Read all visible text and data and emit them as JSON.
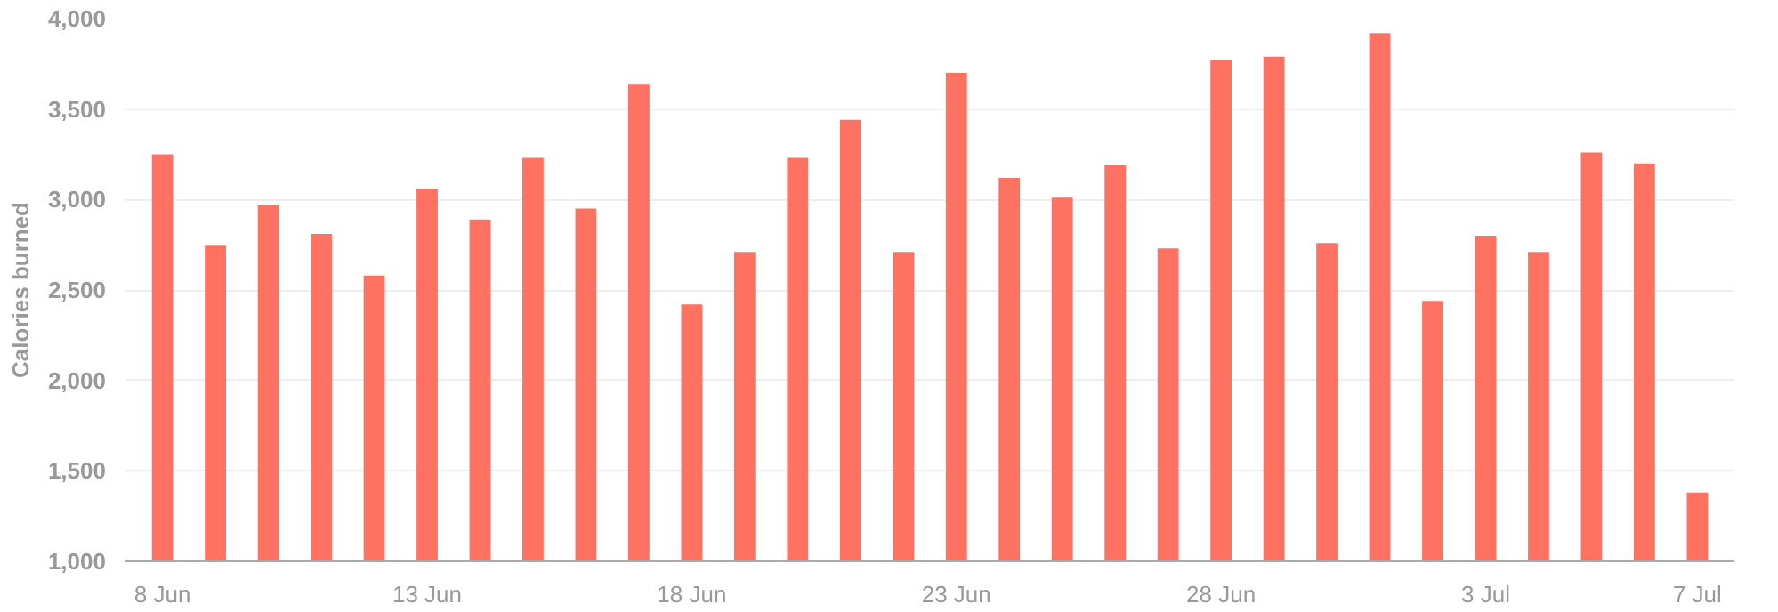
{
  "chart_data": {
    "type": "bar",
    "ylabel": "Calories burned",
    "categories": [
      "8 Jun",
      null,
      null,
      null,
      null,
      "13 Jun",
      null,
      null,
      null,
      null,
      "18 Jun",
      null,
      null,
      null,
      null,
      "23 Jun",
      null,
      null,
      null,
      null,
      "28 Jun",
      null,
      null,
      null,
      null,
      "3 Jul",
      null,
      null,
      null,
      "7 Jul"
    ],
    "series": [
      {
        "color": "#ff7262",
        "values": [
          3250,
          2750,
          2970,
          2810,
          2580,
          3060,
          2890,
          3230,
          2950,
          3640,
          2420,
          2710,
          3230,
          3440,
          2710,
          3700,
          3120,
          3010,
          3190,
          2730,
          3770,
          3790,
          2760,
          3920,
          2440,
          2800,
          2710,
          3260,
          3200,
          1380
        ]
      }
    ],
    "ylim": [
      1000,
      4000
    ],
    "yticks": [
      {
        "value": 1000,
        "label": "1,000"
      },
      {
        "value": 1500,
        "label": "1,500"
      },
      {
        "value": 2000,
        "label": "2,000"
      },
      {
        "value": 2500,
        "label": "2,500"
      },
      {
        "value": 3000,
        "label": "3,000"
      },
      {
        "value": 3500,
        "label": "3,500"
      },
      {
        "value": 4000,
        "label": "4,000"
      }
    ],
    "grid": "y"
  }
}
